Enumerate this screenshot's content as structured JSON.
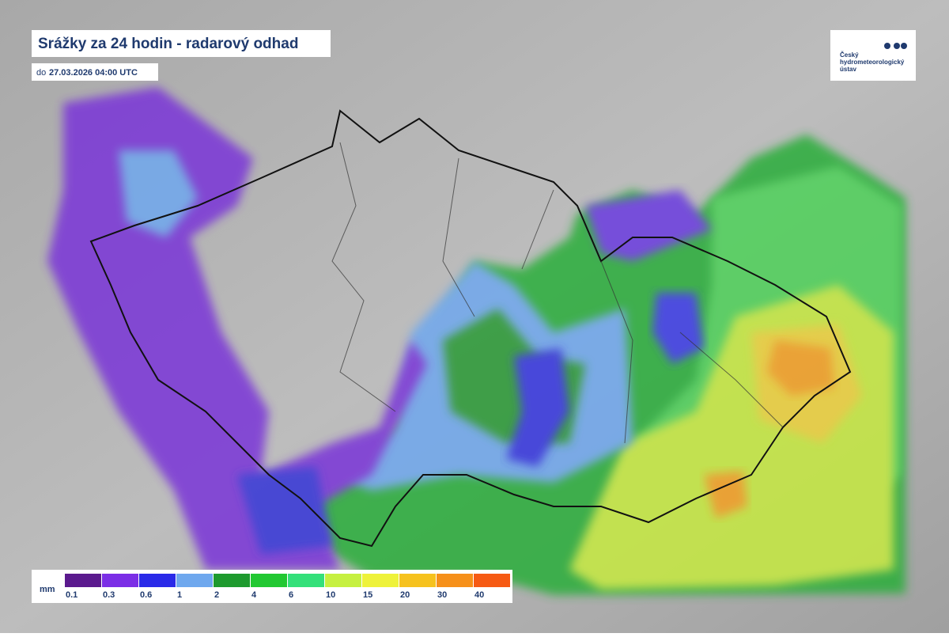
{
  "header": {
    "title": "Srážky za 24 hodin - radarový odhad",
    "subtitle_prefix": "do",
    "subtitle_time": "27.03.2026 04:00 UTC"
  },
  "logo": {
    "lines": [
      "Český",
      "hydrometeorologický",
      "ústav"
    ]
  },
  "legend": {
    "unit": "mm",
    "items": [
      {
        "label": 0.1,
        "color": "#5b1a8e"
      },
      {
        "label": 0.3,
        "color": "#7b2ee6"
      },
      {
        "label": 0.6,
        "color": "#2a2ae8"
      },
      {
        "label": 1,
        "color": "#6fa8ee"
      },
      {
        "label": 2,
        "color": "#1e9a2e"
      },
      {
        "label": 4,
        "color": "#22c832"
      },
      {
        "label": 6,
        "color": "#34e07a"
      },
      {
        "label": 10,
        "color": "#c6f040"
      },
      {
        "label": 15,
        "color": "#eef23a"
      },
      {
        "label": 20,
        "color": "#f6c21e"
      },
      {
        "label": 30,
        "color": "#f6901a"
      },
      {
        "label": 40,
        "color": "#f65a14"
      }
    ]
  }
}
